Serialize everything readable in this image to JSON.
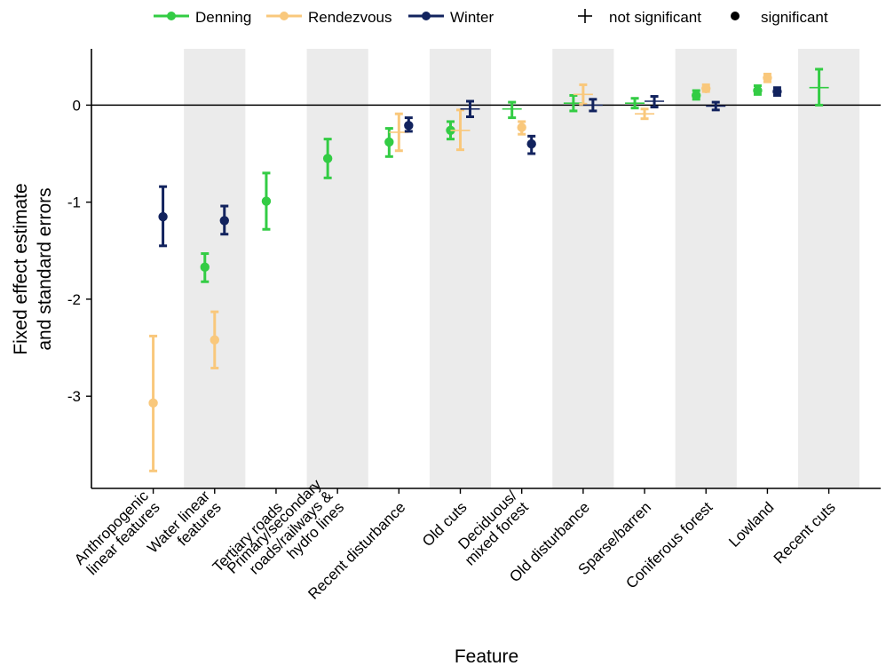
{
  "legend": {
    "series": [
      {
        "label": "Denning",
        "color": "#33cc44"
      },
      {
        "label": "Rendezvous",
        "color": "#f9c87c"
      },
      {
        "label": "Winter",
        "color": "#12235e"
      }
    ],
    "shapes": [
      {
        "label": "not significant",
        "shape": "cross"
      },
      {
        "label": "significant",
        "shape": "dot"
      }
    ]
  },
  "chart_data": {
    "type": "errorbar",
    "xlabel": "Feature",
    "ylabel_lines": [
      "Fixed effect estimate",
      "and standard errors"
    ],
    "ylim": [
      -3.95,
      0.58
    ],
    "yticks": [
      {
        "v": 0,
        "label": "0"
      },
      {
        "v": -1,
        "label": "-1"
      },
      {
        "v": -2,
        "label": "-2"
      },
      {
        "v": -3,
        "label": "-3"
      }
    ],
    "reference_line": 0,
    "alternating_band_color": "#ebebeb",
    "legend_position": "top",
    "categories": [
      "Anthropogenic linear features",
      "Water linear features",
      "Tertiary roads",
      "Primary/secondary roads/railways & hydro lines",
      "Recent disturbance",
      "Old cuts",
      "Deciduous/ mixed forest",
      "Old disturbance",
      "Sparse/barren",
      "Coniferous forest",
      "Lowland",
      "Recent cuts"
    ],
    "category_label_lines": [
      [
        "Anthropogenic",
        "linear features"
      ],
      [
        "Water linear",
        "features"
      ],
      [
        "Tertiary roads"
      ],
      [
        "Primary/secondary",
        "roads/railways &",
        "hydro lines"
      ],
      [
        "Recent disturbance"
      ],
      [
        "Old cuts"
      ],
      [
        "Deciduous/",
        "mixed forest"
      ],
      [
        "Old disturbance"
      ],
      [
        "Sparse/barren"
      ],
      [
        "Coniferous forest"
      ],
      [
        "Lowland"
      ],
      [
        "Recent cuts"
      ]
    ],
    "series": [
      {
        "name": "Denning",
        "color": "#33cc44",
        "points": [
          null,
          {
            "est": -1.67,
            "lo": -1.82,
            "hi": -1.53,
            "sig": true
          },
          {
            "est": -0.99,
            "lo": -1.28,
            "hi": -0.7,
            "sig": true
          },
          {
            "est": -0.55,
            "lo": -0.75,
            "hi": -0.35,
            "sig": true
          },
          {
            "est": -0.38,
            "lo": -0.53,
            "hi": -0.24,
            "sig": true
          },
          {
            "est": -0.26,
            "lo": -0.35,
            "hi": -0.17,
            "sig": true
          },
          {
            "est": -0.04,
            "lo": -0.13,
            "hi": 0.03,
            "sig": false
          },
          {
            "est": 0.02,
            "lo": -0.06,
            "hi": 0.1,
            "sig": false
          },
          {
            "est": 0.02,
            "lo": -0.03,
            "hi": 0.07,
            "sig": false
          },
          {
            "est": 0.1,
            "lo": 0.06,
            "hi": 0.15,
            "sig": true
          },
          {
            "est": 0.15,
            "lo": 0.11,
            "hi": 0.2,
            "sig": true
          },
          {
            "est": 0.18,
            "lo": 0.0,
            "hi": 0.37,
            "sig": false
          }
        ]
      },
      {
        "name": "Rendezvous",
        "color": "#f9c87c",
        "points": [
          {
            "est": -3.07,
            "lo": -3.77,
            "hi": -2.38,
            "sig": true
          },
          {
            "est": -2.42,
            "lo": -2.71,
            "hi": -2.13,
            "sig": true
          },
          null,
          null,
          {
            "est": -0.28,
            "lo": -0.47,
            "hi": -0.09,
            "sig": false
          },
          {
            "est": -0.26,
            "lo": -0.46,
            "hi": -0.05,
            "sig": false
          },
          {
            "est": -0.23,
            "lo": -0.3,
            "hi": -0.17,
            "sig": true
          },
          {
            "est": 0.11,
            "lo": 0.01,
            "hi": 0.21,
            "sig": false
          },
          {
            "est": -0.09,
            "lo": -0.14,
            "hi": -0.04,
            "sig": false
          },
          {
            "est": 0.17,
            "lo": 0.14,
            "hi": 0.21,
            "sig": true
          },
          {
            "est": 0.28,
            "lo": 0.24,
            "hi": 0.32,
            "sig": true
          },
          null
        ]
      },
      {
        "name": "Winter",
        "color": "#12235e",
        "points": [
          {
            "est": -1.15,
            "lo": -1.45,
            "hi": -0.84,
            "sig": true
          },
          {
            "est": -1.19,
            "lo": -1.33,
            "hi": -1.04,
            "sig": true
          },
          null,
          null,
          {
            "est": -0.21,
            "lo": -0.27,
            "hi": -0.13,
            "sig": true
          },
          {
            "est": -0.04,
            "lo": -0.12,
            "hi": 0.04,
            "sig": false
          },
          {
            "est": -0.4,
            "lo": -0.5,
            "hi": -0.32,
            "sig": true
          },
          {
            "est": 0.0,
            "lo": -0.06,
            "hi": 0.06,
            "sig": false
          },
          {
            "est": 0.04,
            "lo": -0.02,
            "hi": 0.09,
            "sig": false
          },
          {
            "est": -0.01,
            "lo": -0.05,
            "hi": 0.03,
            "sig": false
          },
          {
            "est": 0.14,
            "lo": 0.1,
            "hi": 0.18,
            "sig": true
          },
          null
        ]
      }
    ]
  }
}
